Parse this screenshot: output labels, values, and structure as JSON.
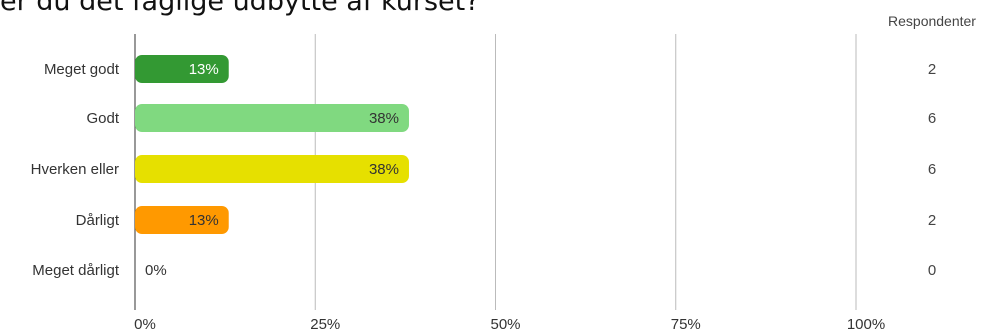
{
  "title": "er du det faglige udbytte af kurset?",
  "chart_data": {
    "type": "bar",
    "orientation": "horizontal",
    "categories": [
      "Meget godt",
      "Godt",
      "Hverken eller",
      "Dårligt",
      "Meget dårligt"
    ],
    "values": [
      13,
      38,
      38,
      13,
      0
    ],
    "value_labels": [
      "13%",
      "38%",
      "38%",
      "13%",
      "0%"
    ],
    "colors": [
      "#339933",
      "#80d980",
      "#e6e000",
      "#ff9900",
      "#cccccc"
    ],
    "label_colors": [
      "#ffffff",
      "#333333",
      "#333333",
      "#333333",
      "#333333"
    ],
    "xlim": [
      0,
      100
    ],
    "xticks": [
      0,
      25,
      50,
      75,
      100
    ],
    "xtick_labels": [
      "0%",
      "25%",
      "50%",
      "75%",
      "100%"
    ],
    "grid": true,
    "respondents_header": "Respondenter",
    "respondents": [
      "2",
      "6",
      "6",
      "2",
      "0"
    ]
  }
}
